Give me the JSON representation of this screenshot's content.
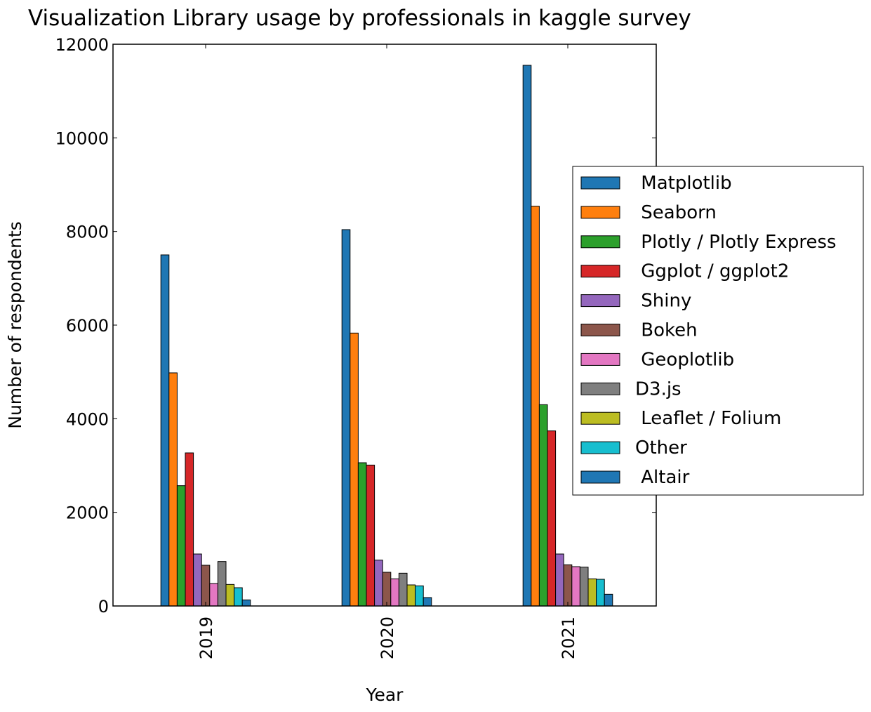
{
  "chart_data": {
    "type": "bar",
    "title": "Visualization Library usage by professionals in kaggle survey",
    "xlabel": "Year",
    "ylabel": "Number of respondents",
    "categories": [
      "2019",
      "2020",
      "2021"
    ],
    "ylim": [
      0,
      12000
    ],
    "yticks": [
      0,
      2000,
      4000,
      6000,
      8000,
      10000,
      12000
    ],
    "grid": false,
    "legend_position": "right",
    "series": [
      {
        "name": " Matplotlib",
        "color": "#1f77b4",
        "values": [
          7500,
          8040,
          11550
        ]
      },
      {
        "name": " Seaborn",
        "color": "#ff7f0e",
        "values": [
          4980,
          5830,
          8540
        ]
      },
      {
        "name": " Plotly / Plotly Express",
        "color": "#2ca02c",
        "values": [
          2570,
          3060,
          4300
        ]
      },
      {
        "name": " Ggplot / ggplot2",
        "color": "#d62728",
        "values": [
          3270,
          3010,
          3740
        ]
      },
      {
        "name": " Shiny",
        "color": "#9467bd",
        "values": [
          1110,
          980,
          1110
        ]
      },
      {
        "name": " Bokeh",
        "color": "#8c564b",
        "values": [
          870,
          720,
          880
        ]
      },
      {
        "name": " Geoplotlib",
        "color": "#e377c2",
        "values": [
          480,
          580,
          840
        ]
      },
      {
        "name": "D3.js",
        "color": "#7f7f7f",
        "values": [
          950,
          700,
          830
        ]
      },
      {
        "name": " Leaflet / Folium",
        "color": "#bcbd22",
        "values": [
          460,
          450,
          580
        ]
      },
      {
        "name": "Other",
        "color": "#17becf",
        "values": [
          390,
          430,
          570
        ]
      },
      {
        "name": " Altair",
        "color": "#1f77b4",
        "values": [
          130,
          180,
          250
        ]
      }
    ]
  }
}
